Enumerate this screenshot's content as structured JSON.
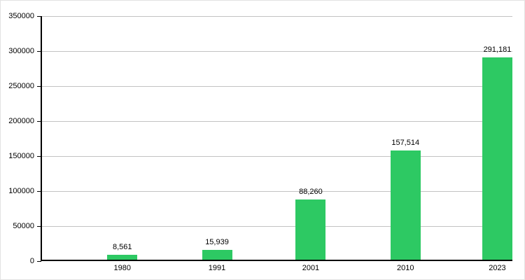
{
  "chart_data": {
    "type": "bar",
    "categories": [
      "1980",
      "1991",
      "2001",
      "2010",
      "2023"
    ],
    "values": [
      8561,
      15939,
      88260,
      157514,
      291181
    ],
    "value_labels": [
      "8,561",
      "15,939",
      "88,260",
      "157,514",
      "291,181"
    ],
    "ytick_values": [
      0,
      50000,
      100000,
      150000,
      200000,
      250000,
      300000,
      350000
    ],
    "ytick_labels": [
      "0",
      "50000",
      "100000",
      "150000",
      "200000",
      "250000",
      "300000",
      "350000"
    ],
    "ylim": [
      0,
      350000
    ],
    "xlabel": "",
    "ylabel": "",
    "grid": "horizontal",
    "legend": "none",
    "colors": {
      "bar_fill": "#2dc963",
      "gridline": "#c3c3c3",
      "axis": "#000000",
      "text": "#000000",
      "background": "#ffffff"
    }
  }
}
